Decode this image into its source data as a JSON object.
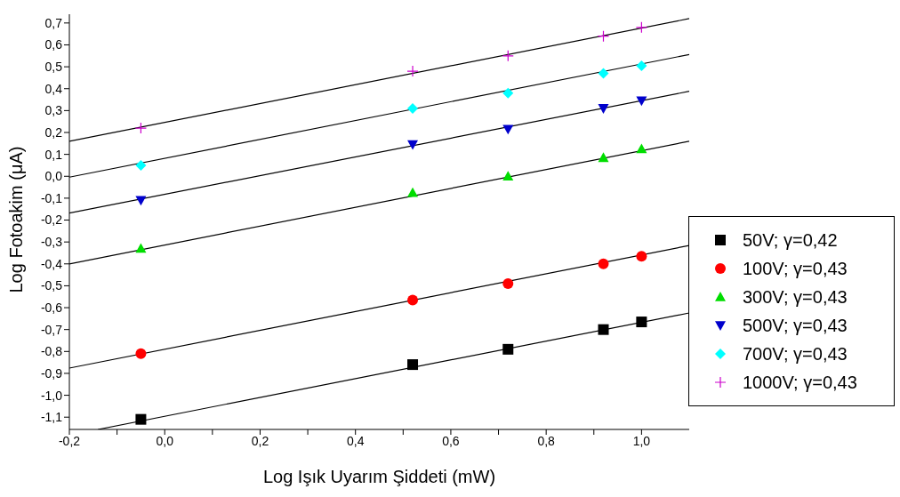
{
  "chart_data": {
    "type": "scatter",
    "xlabel": "Log Işık Uyarım Şiddeti (mW)",
    "ylabel": "Log Fotoakim  (μA)",
    "xlim": [
      -0.2,
      1.1
    ],
    "ylim": [
      -1.156,
      0.74
    ],
    "xticks": [
      {
        "value": -0.2,
        "label": "-0,2"
      },
      {
        "value": -0.1,
        "label": null
      },
      {
        "value": 0,
        "label": "0,0"
      },
      {
        "value": 0.1,
        "label": null
      },
      {
        "value": 0.2,
        "label": "0,2"
      },
      {
        "value": 0.3,
        "label": null
      },
      {
        "value": 0.4,
        "label": "0,4"
      },
      {
        "value": 0.5,
        "label": null
      },
      {
        "value": 0.6,
        "label": "0,6"
      },
      {
        "value": 0.7,
        "label": null
      },
      {
        "value": 0.8,
        "label": "0,8"
      },
      {
        "value": 0.9,
        "label": null
      },
      {
        "value": 1.0,
        "label": "1,0"
      }
    ],
    "yticks": [
      {
        "value": -1.1,
        "label": "-1,1"
      },
      {
        "value": -1.0,
        "label": "-1,0"
      },
      {
        "value": -0.9,
        "label": "-0,9"
      },
      {
        "value": -0.8,
        "label": "-0,8"
      },
      {
        "value": -0.7,
        "label": "-0,7"
      },
      {
        "value": -0.6,
        "label": "-0,6"
      },
      {
        "value": -0.5,
        "label": "-0,5"
      },
      {
        "value": -0.4,
        "label": "-0,4"
      },
      {
        "value": -0.3,
        "label": "-0,3"
      },
      {
        "value": -0.2,
        "label": "-0,2"
      },
      {
        "value": -0.1,
        "label": "-0,1"
      },
      {
        "value": 0,
        "label": "0,0"
      },
      {
        "value": 0.1,
        "label": "0,1"
      },
      {
        "value": 0.2,
        "label": "0,2"
      },
      {
        "value": 0.3,
        "label": "0,3"
      },
      {
        "value": 0.4,
        "label": "0,4"
      },
      {
        "value": 0.5,
        "label": "0,5"
      },
      {
        "value": 0.6,
        "label": "0,6"
      },
      {
        "value": 0.7,
        "label": "0,7"
      }
    ],
    "x": [
      -0.05,
      0.52,
      0.72,
      0.92,
      1.0
    ],
    "legend": "right",
    "grid": false,
    "series": [
      {
        "name": "50V; γ=0,42",
        "color": "#000000",
        "marker": "square",
        "values": [
          -1.11,
          -0.86,
          -0.79,
          -0.7,
          -0.665
        ]
      },
      {
        "name": "100V; γ=0,43",
        "color": "#ff0000",
        "marker": "circle",
        "values": [
          -0.81,
          -0.565,
          -0.49,
          -0.4,
          -0.365
        ]
      },
      {
        "name": "300V; γ=0,43",
        "color": "#00dd00",
        "marker": "triangle",
        "values": [
          -0.33,
          -0.075,
          0.0,
          0.085,
          0.125
        ]
      },
      {
        "name": "500V; γ=0,43",
        "color": "#0000cc",
        "marker": "triangle-down",
        "values": [
          -0.11,
          0.145,
          0.215,
          0.31,
          0.345
        ]
      },
      {
        "name": "700V; γ=0,43",
        "color": "#00ffff",
        "marker": "diamond",
        "values": [
          0.05,
          0.31,
          0.38,
          0.47,
          0.505
        ]
      },
      {
        "name": "1000V; γ=0,43",
        "color": "#cc00cc",
        "marker": "cross",
        "values": [
          0.22,
          0.48,
          0.55,
          0.64,
          0.68
        ]
      },
      {
        "type": "line",
        "color": "#000000",
        "x": [
          -0.14,
          1.1
        ],
        "values": [
          -1.156,
          -0.624
        ]
      },
      {
        "type": "line",
        "color": "#000000",
        "x": [
          -0.2,
          1.1
        ],
        "values": [
          -0.876,
          -0.316
        ]
      },
      {
        "type": "line",
        "color": "#000000",
        "x": [
          -0.2,
          1.1
        ],
        "values": [
          -0.4,
          0.16
        ]
      },
      {
        "type": "line",
        "color": "#000000",
        "x": [
          -0.2,
          1.1
        ],
        "values": [
          -0.168,
          0.388
        ]
      },
      {
        "type": "line",
        "color": "#000000",
        "x": [
          -0.2,
          1.1
        ],
        "values": [
          -0.004,
          0.556
        ]
      },
      {
        "type": "line",
        "color": "#000000",
        "x": [
          -0.2,
          1.1
        ],
        "values": [
          0.16,
          0.72
        ]
      }
    ]
  }
}
